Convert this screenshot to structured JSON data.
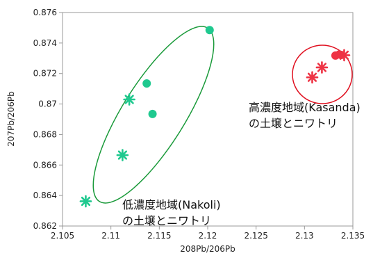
{
  "chart_data": {
    "type": "scatter",
    "xlabel": "208Pb/206Pb",
    "ylabel": "207Pb/206Pb",
    "xlim": [
      2.105,
      2.135
    ],
    "ylim": [
      0.862,
      0.876
    ],
    "x_ticks": [
      "2.105",
      "2.11",
      "2.115",
      "2.12",
      "2.125",
      "2.13",
      "2.135"
    ],
    "y_ticks": [
      "0.862",
      "0.864",
      "0.866",
      "0.868",
      "0.87",
      "0.872",
      "0.874",
      "0.876"
    ],
    "grid": false,
    "series": [
      {
        "color": "#1fc98f",
        "marker": "circle",
        "points": [
          [
            2.1202,
            0.87485
          ],
          [
            2.1137,
            0.87135
          ],
          [
            2.1143,
            0.86935
          ]
        ]
      },
      {
        "color": "#1fc98f",
        "marker": "asterisk",
        "points": [
          [
            2.1119,
            0.8703
          ],
          [
            2.1112,
            0.86665
          ],
          [
            2.1074,
            0.86362
          ]
        ]
      },
      {
        "color": "#ee3344",
        "marker": "circle",
        "points": [
          [
            2.1332,
            0.87318
          ],
          [
            2.1336,
            0.87325
          ],
          [
            2.1338,
            0.87322
          ]
        ]
      },
      {
        "color": "#ee3344",
        "marker": "asterisk",
        "points": [
          [
            2.1308,
            0.87175
          ],
          [
            2.1318,
            0.8724
          ],
          [
            2.1341,
            0.8732
          ]
        ]
      }
    ],
    "groups": [
      {
        "outline_color": "#1a9a3a",
        "label_line1": "低濃度地域(Nakoli)",
        "label_line2": "の土壌とニワトリ"
      },
      {
        "outline_color": "#e01020",
        "label_line1": "高濃度地域(Kasanda)",
        "label_line2": "の土壌とニワトリ"
      }
    ]
  }
}
